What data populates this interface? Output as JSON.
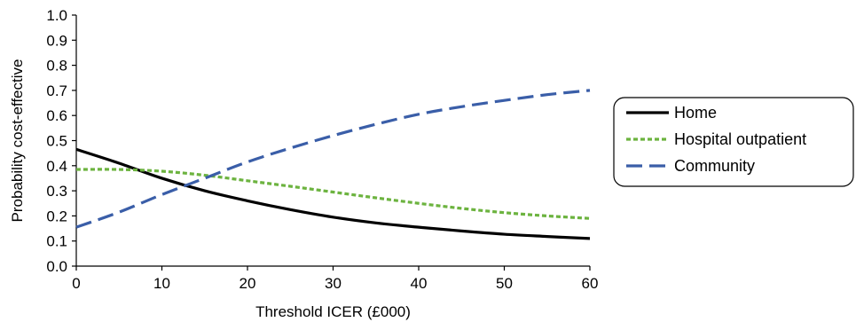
{
  "chart_data": {
    "type": "line",
    "title": "",
    "xlabel": "Threshold ICER (£000)",
    "ylabel": "Probability cost-effective",
    "xlim": [
      0,
      60
    ],
    "ylim": [
      0,
      1
    ],
    "x_ticks": [
      0,
      10,
      20,
      30,
      40,
      50,
      60
    ],
    "x_tick_labels": [
      "0",
      "10",
      "20",
      "30",
      "40",
      "50",
      "60"
    ],
    "y_ticks": [
      0,
      0.1,
      0.2,
      0.3,
      0.4,
      0.5,
      0.6,
      0.7,
      0.8,
      0.9,
      1.0
    ],
    "y_tick_labels": [
      "0.0",
      "0.1",
      "0.2",
      "0.3",
      "0.4",
      "0.5",
      "0.6",
      "0.7",
      "0.8",
      "0.9",
      "1.0"
    ],
    "grid": false,
    "legend_position": "right",
    "x": [
      0,
      5,
      10,
      15,
      20,
      25,
      30,
      35,
      40,
      45,
      50,
      55,
      60
    ],
    "series": [
      {
        "name": "Home",
        "color": "#000000",
        "dash": "solid",
        "values": [
          0.465,
          0.41,
          0.35,
          0.3,
          0.26,
          0.225,
          0.195,
          0.172,
          0.155,
          0.14,
          0.127,
          0.118,
          0.11
        ]
      },
      {
        "name": "Hospital outpatient",
        "color": "#6cb33f",
        "dash": "dotted",
        "values": [
          0.385,
          0.385,
          0.378,
          0.362,
          0.34,
          0.318,
          0.295,
          0.272,
          0.25,
          0.23,
          0.213,
          0.2,
          0.19
        ]
      },
      {
        "name": "Community",
        "color": "#3a5ea8",
        "dash": "dashed",
        "values": [
          0.155,
          0.215,
          0.285,
          0.35,
          0.415,
          0.47,
          0.52,
          0.565,
          0.605,
          0.635,
          0.66,
          0.683,
          0.7
        ]
      }
    ]
  }
}
